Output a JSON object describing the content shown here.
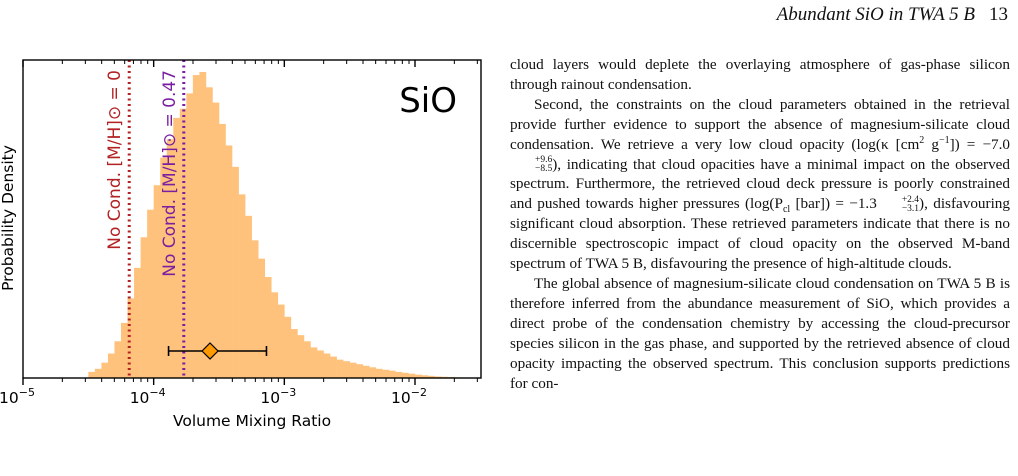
{
  "header": {
    "title": "Abundant SiO in TWA 5 B",
    "page_number": "13"
  },
  "figure": {
    "label": "SiO",
    "vline_solar": "No Cond. [M/H]⊙ = 0",
    "vline_subsolar": "No Cond. [M/H]⊙ = 0.47",
    "colors": {
      "hist_fill": "#ffc27c",
      "solar_line": "#b22222",
      "subsolar_line": "#7a1fa2",
      "marker": "#ff9900"
    },
    "chart_data": {
      "type": "histogram",
      "xlabel": "Volume Mixing Ratio",
      "ylabel": "Probability Density",
      "xscale": "log",
      "xlim": [
        1e-05,
        0.032
      ],
      "xticks": [
        "10^-5",
        "10^-4",
        "10^-3",
        "10^-2"
      ],
      "log10_bin_edges_start": -4.5,
      "log10_bin_width": 0.05,
      "densities": [
        0.02,
        0.03,
        0.05,
        0.08,
        0.12,
        0.18,
        0.26,
        0.36,
        0.46,
        0.55,
        0.63,
        0.72,
        0.78,
        0.85,
        0.88,
        0.93,
        0.99,
        1.0,
        0.95,
        0.9,
        0.83,
        0.76,
        0.69,
        0.6,
        0.53,
        0.45,
        0.39,
        0.33,
        0.28,
        0.24,
        0.2,
        0.16,
        0.14,
        0.12,
        0.1,
        0.09,
        0.08,
        0.07,
        0.06,
        0.055,
        0.05,
        0.045,
        0.04,
        0.035,
        0.03,
        0.027,
        0.024,
        0.02,
        0.017,
        0.014,
        0.011,
        0.009,
        0.007,
        0.005,
        0.004,
        0.003,
        0.002,
        0.001
      ],
      "vlines": [
        {
          "label": "No Cond. [M/H]⊙ = 0",
          "x": 6.5e-05
        },
        {
          "label": "No Cond. [M/H]⊙ = 0.47",
          "x": 0.00017
        }
      ],
      "median": 0.00027,
      "interval": [
        0.00013,
        0.00073
      ]
    }
  },
  "text": {
    "p1": "cloud layers would deplete the overlaying atmosphere of gas-phase silicon through rainout condensation.",
    "p2a": "Second, the constraints on the cloud parameters obtained in the retrieval provide further evidence to support the absence of magnesium-silicate cloud condensation. We retrieve a very low cloud opacity (log(κ [cm",
    "p2_exp1": "2",
    "p2b": " g",
    "p2_exp2": "−1",
    "p2c": "]) = −7.0",
    "p2_up1": "+9.6",
    "p2_dn1": "−8.5",
    "p2d": "), indicating that cloud opacities have a minimal impact on the observed spectrum. Furthermore, the retrieved cloud deck pressure is poorly constrained and pushed towards higher pressures (log(P",
    "p2_sub": "cl",
    "p2e": " [bar]) = −1.3",
    "p2_up2": "+2.4",
    "p2_dn2": "−3.1",
    "p2f": "), disfavouring significant cloud absorption. These retrieved parameters indicate that there is no discernible spectroscopic impact of cloud opacity on the observed M-band spectrum of TWA 5 B, disfavouring the presence of high-altitude clouds.",
    "p3": "The global absence of magnesium-silicate cloud condensation on TWA 5 B is therefore inferred from the abundance measurement of SiO, which provides a direct probe of the condensation chemistry by accessing the cloud-precursor species silicon in the gas phase, and supported by the retrieved absence of cloud opacity impacting the observed spectrum. This conclusion supports predictions for con-"
  }
}
